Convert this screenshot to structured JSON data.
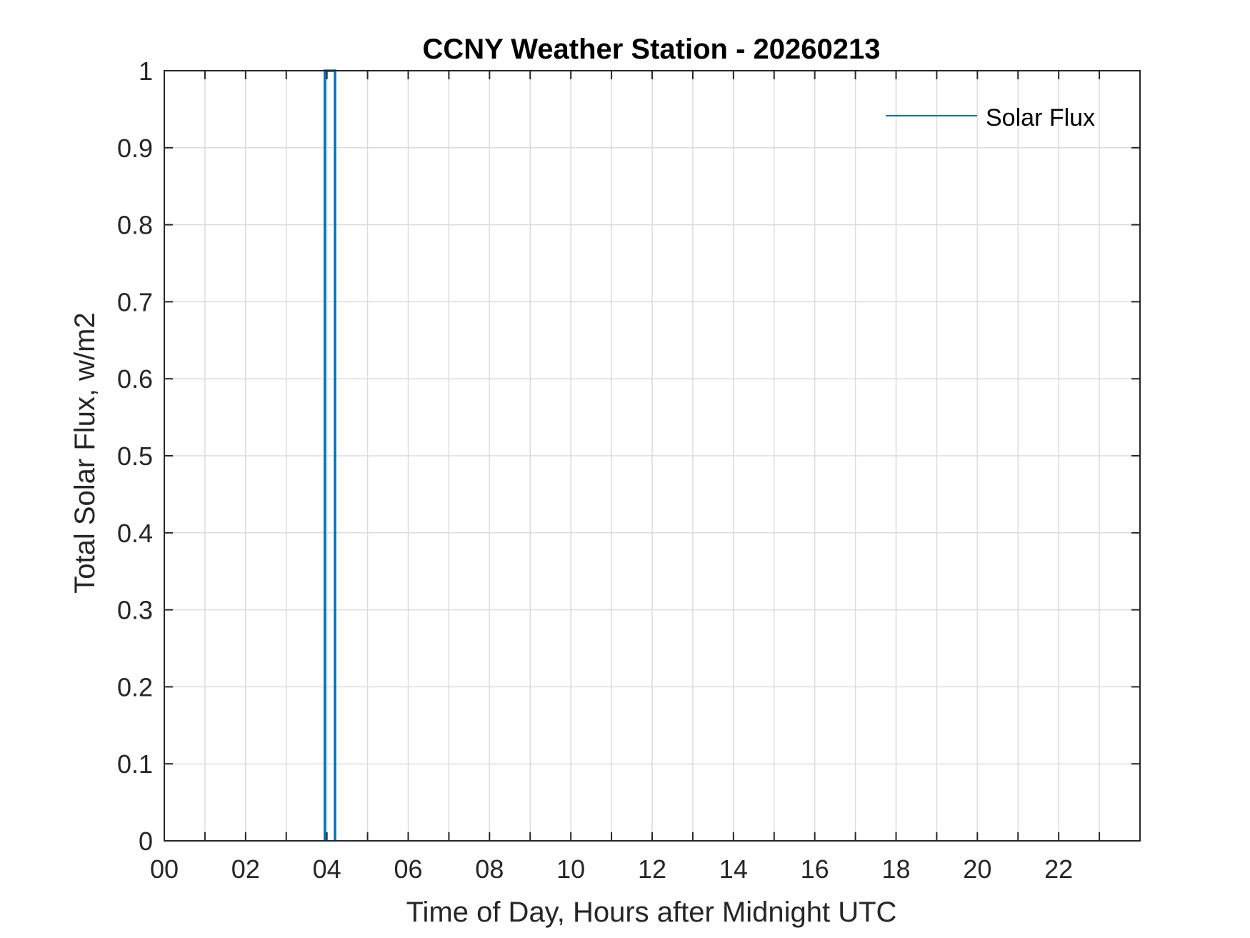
{
  "chart_data": {
    "type": "line",
    "title": "CCNY Weather Station - 20260213",
    "xlabel": "Time of Day, Hours after Midnight UTC",
    "ylabel": "Total Solar Flux, w/m2",
    "xlim": [
      0,
      24
    ],
    "ylim": [
      0,
      1
    ],
    "grid": true,
    "x_grid_step": 1,
    "x_ticks": [
      0,
      2,
      4,
      6,
      8,
      10,
      12,
      14,
      16,
      18,
      20,
      22
    ],
    "x_tick_labels": [
      "00",
      "02",
      "04",
      "06",
      "08",
      "10",
      "12",
      "14",
      "16",
      "18",
      "20",
      "22"
    ],
    "y_ticks": [
      0,
      0.1,
      0.2,
      0.3,
      0.4,
      0.5,
      0.6,
      0.7,
      0.8,
      0.9,
      1
    ],
    "y_tick_labels": [
      "0",
      "0.1",
      "0.2",
      "0.3",
      "0.4",
      "0.5",
      "0.6",
      "0.7",
      "0.8",
      "0.9",
      "1"
    ],
    "legend_location": "top-right",
    "series": [
      {
        "name": "Solar Flux",
        "color": "#0072BD",
        "x": [
          3.95,
          3.95,
          4.0,
          4.1,
          4.2,
          4.2
        ],
        "y": [
          0,
          1,
          1,
          1,
          1,
          0
        ]
      }
    ]
  }
}
